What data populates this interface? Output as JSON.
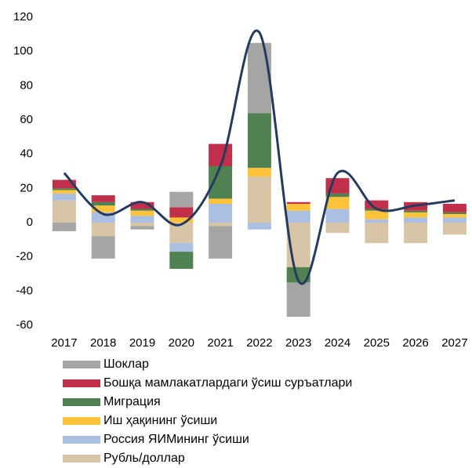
{
  "chart_data": {
    "type": "stacked_bar_line",
    "categories": [
      "2017",
      "2018",
      "2019",
      "2020",
      "2021",
      "2022",
      "2023",
      "2024",
      "2025",
      "2026",
      "2027"
    ],
    "series": [
      {
        "name": "Шоклар",
        "color": "#a5a5a5",
        "values": [
          -5,
          -13,
          -2,
          9,
          -19,
          41,
          -20,
          0,
          0,
          0,
          0
        ]
      },
      {
        "name": "Бошқа мамлакатлардаги ўсиш суръатлари",
        "color": "#c0304a",
        "values": [
          5,
          4,
          4,
          6,
          13,
          0,
          1,
          9,
          5,
          5,
          5
        ]
      },
      {
        "name": "Миграция",
        "color": "#4f8152",
        "values": [
          1,
          2,
          1,
          -10,
          19,
          32,
          -9,
          2,
          1,
          1,
          1
        ]
      },
      {
        "name": "Иш ҳақининг ўсиши",
        "color": "#ffc33a",
        "values": [
          2,
          4,
          3,
          3,
          3,
          5,
          4,
          7,
          5,
          3,
          2
        ]
      },
      {
        "name": "Россия ЯИМининг ўсиши",
        "color": "#aabfe1",
        "values": [
          4,
          6,
          4,
          -5,
          11,
          -4,
          7,
          8,
          2,
          3,
          3
        ]
      },
      {
        "name": "Рубль/доллар",
        "color": "#d8c4a6",
        "values": [
          13,
          -8,
          -2,
          -12,
          -2,
          27,
          -26,
          -6,
          -12,
          -12,
          -7
        ]
      }
    ],
    "line": {
      "color": "#243b5f",
      "values": [
        29,
        5,
        12,
        -1,
        33,
        111,
        -34,
        29,
        8,
        10,
        13
      ]
    },
    "ylim": [
      -60,
      120
    ],
    "yticks": [
      -60,
      -40,
      -20,
      0,
      20,
      40,
      60,
      80,
      100,
      120
    ]
  }
}
